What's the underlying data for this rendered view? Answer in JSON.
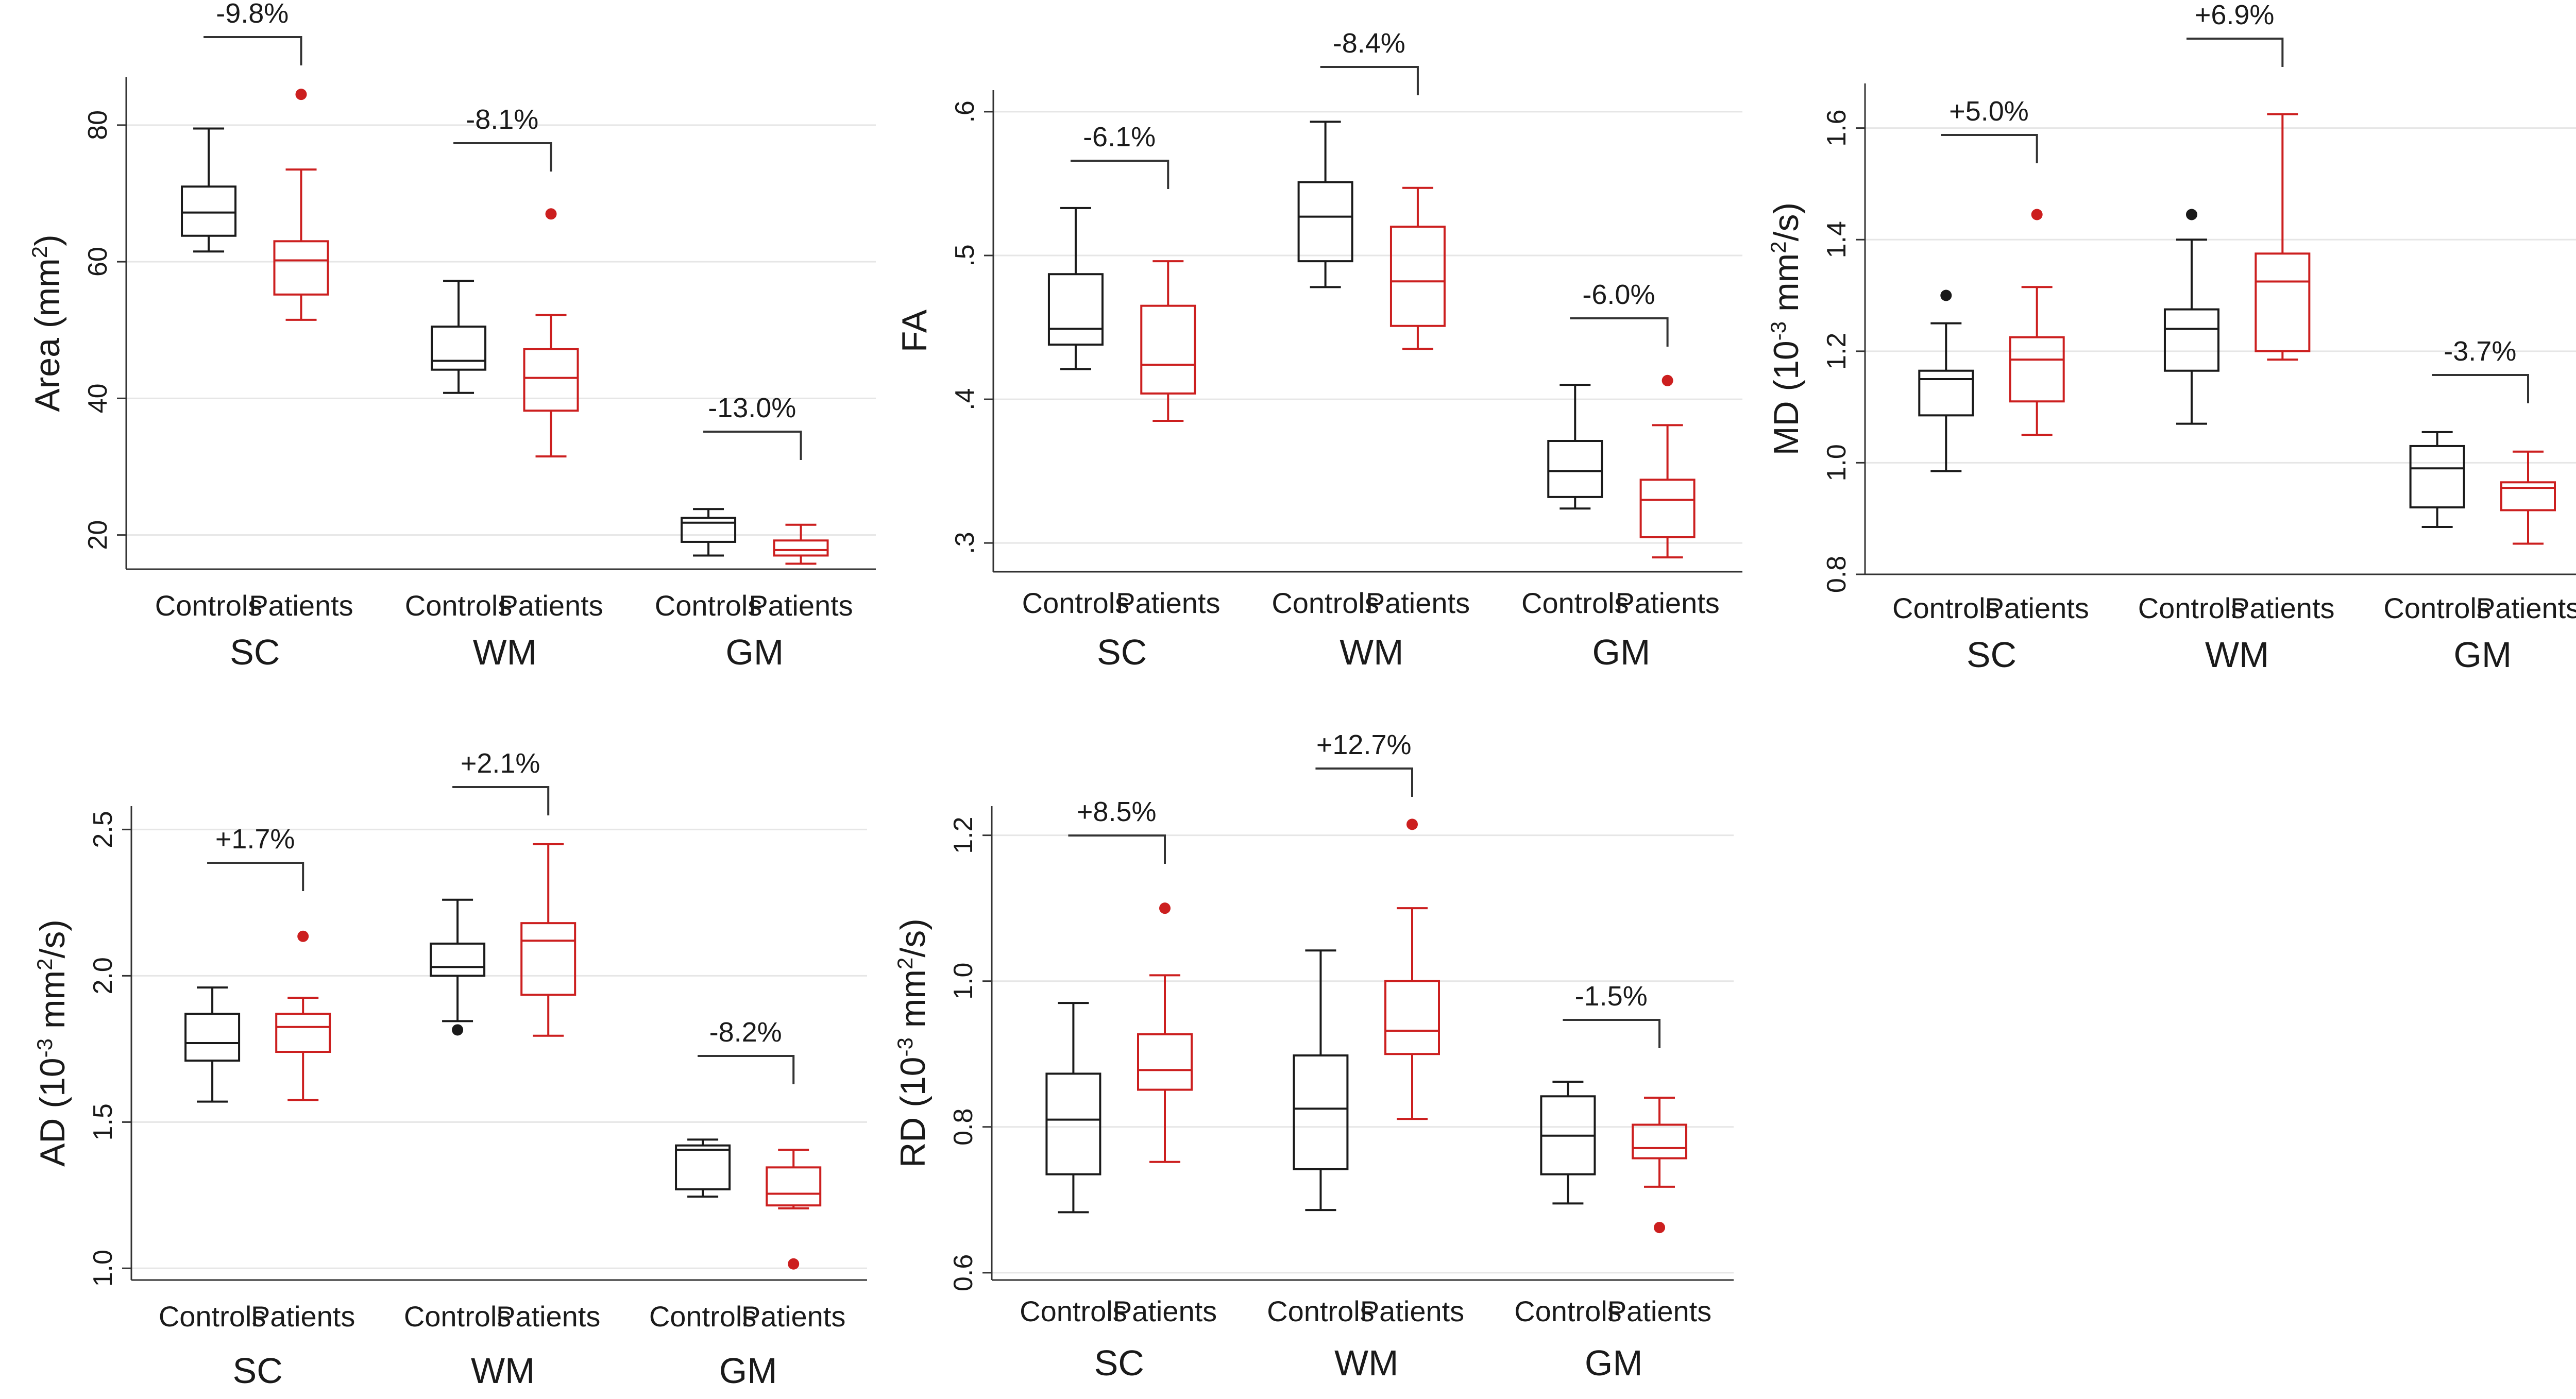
{
  "colors": {
    "controls": "#1a1a1a",
    "patients": "#cc1f1f",
    "grid": "#e6e6e6",
    "axis": "#333333"
  },
  "chart_data": [
    {
      "type": "box",
      "ylabel": "Area (mm²)",
      "ylabel_html": [
        "Area (mm",
        "2",
        ")"
      ],
      "ylim": [
        15,
        87
      ],
      "yticks": [
        20,
        40,
        60,
        80
      ],
      "ytick_labels": [
        "20",
        "40",
        "60",
        "80"
      ],
      "groups": [
        "Controls",
        "Patients"
      ],
      "sections": [
        {
          "name": "SC",
          "annotation": "-9.8%",
          "boxes": [
            {
              "group": "Controls",
              "whisker_low": 61.5,
              "q1": 63.8,
              "median": 67.2,
              "q3": 71,
              "whisker_high": 79.5,
              "outliers": []
            },
            {
              "group": "Patients",
              "whisker_low": 51.5,
              "q1": 55.2,
              "median": 60.2,
              "q3": 63,
              "whisker_high": 73.5,
              "outliers": [
                84.5
              ]
            }
          ]
        },
        {
          "name": "WM",
          "annotation": "-8.1%",
          "boxes": [
            {
              "group": "Controls",
              "whisker_low": 40.8,
              "q1": 44.2,
              "median": 45.5,
              "q3": 50.5,
              "whisker_high": 57.2,
              "outliers": []
            },
            {
              "group": "Patients",
              "whisker_low": 31.5,
              "q1": 38.2,
              "median": 43,
              "q3": 47.2,
              "whisker_high": 52.2,
              "outliers": [
                67
              ]
            }
          ]
        },
        {
          "name": "GM",
          "annotation": "-13.0%",
          "boxes": [
            {
              "group": "Controls",
              "whisker_low": 17,
              "q1": 19,
              "median": 21.8,
              "q3": 22.5,
              "whisker_high": 23.8,
              "outliers": []
            },
            {
              "group": "Patients",
              "whisker_low": 15.8,
              "q1": 17,
              "median": 17.8,
              "q3": 19.2,
              "whisker_high": 21.5,
              "outliers": []
            }
          ]
        }
      ]
    },
    {
      "type": "box",
      "ylabel": "FA",
      "ylabel_html": [
        "FA"
      ],
      "ylim": [
        0.28,
        0.615
      ],
      "yticks": [
        0.3,
        0.4,
        0.5,
        0.6
      ],
      "ytick_labels": [
        ".3",
        ".4",
        ".5",
        ".6"
      ],
      "groups": [
        "Controls",
        "Patients"
      ],
      "sections": [
        {
          "name": "SC",
          "annotation": "-6.1%",
          "boxes": [
            {
              "group": "Controls",
              "whisker_low": 0.421,
              "q1": 0.438,
              "median": 0.449,
              "q3": 0.487,
              "whisker_high": 0.533,
              "outliers": []
            },
            {
              "group": "Patients",
              "whisker_low": 0.385,
              "q1": 0.404,
              "median": 0.424,
              "q3": 0.465,
              "whisker_high": 0.496,
              "outliers": []
            }
          ]
        },
        {
          "name": "WM",
          "annotation": "-8.4%",
          "boxes": [
            {
              "group": "Controls",
              "whisker_low": 0.478,
              "q1": 0.496,
              "median": 0.527,
              "q3": 0.551,
              "whisker_high": 0.593,
              "outliers": []
            },
            {
              "group": "Patients",
              "whisker_low": 0.435,
              "q1": 0.451,
              "median": 0.482,
              "q3": 0.52,
              "whisker_high": 0.547,
              "outliers": []
            }
          ]
        },
        {
          "name": "GM",
          "annotation": "-6.0%",
          "boxes": [
            {
              "group": "Controls",
              "whisker_low": 0.324,
              "q1": 0.332,
              "median": 0.35,
              "q3": 0.371,
              "whisker_high": 0.41,
              "outliers": []
            },
            {
              "group": "Patients",
              "whisker_low": 0.29,
              "q1": 0.304,
              "median": 0.33,
              "q3": 0.344,
              "whisker_high": 0.382,
              "outliers": [
                0.413
              ]
            }
          ]
        }
      ]
    },
    {
      "type": "box",
      "ylabel": "MD (10⁻³ mm²/s)",
      "ylabel_html": [
        "MD (10",
        "-3",
        " mm",
        "2",
        "/s)"
      ],
      "ylim": [
        0.8,
        1.68
      ],
      "yticks": [
        0.8,
        1.0,
        1.2,
        1.4,
        1.6
      ],
      "ytick_labels": [
        "0.8",
        "1.0",
        "1.2",
        "1.4",
        "1.6"
      ],
      "groups": [
        "Controls",
        "Patients"
      ],
      "sections": [
        {
          "name": "SC",
          "annotation": "+5.0%",
          "boxes": [
            {
              "group": "Controls",
              "whisker_low": 0.985,
              "q1": 1.085,
              "median": 1.15,
              "q3": 1.165,
              "whisker_high": 1.25,
              "outliers": [
                1.3
              ]
            },
            {
              "group": "Patients",
              "whisker_low": 1.05,
              "q1": 1.11,
              "median": 1.185,
              "q3": 1.225,
              "whisker_high": 1.315,
              "outliers": [
                1.445
              ]
            }
          ]
        },
        {
          "name": "WM",
          "annotation": "+6.9%",
          "boxes": [
            {
              "group": "Controls",
              "whisker_low": 1.07,
              "q1": 1.165,
              "median": 1.24,
              "q3": 1.275,
              "whisker_high": 1.4,
              "outliers": [
                1.445
              ]
            },
            {
              "group": "Patients",
              "whisker_low": 1.185,
              "q1": 1.2,
              "median": 1.325,
              "q3": 1.375,
              "whisker_high": 1.625,
              "outliers": []
            }
          ]
        },
        {
          "name": "GM",
          "annotation": "-3.7%",
          "boxes": [
            {
              "group": "Controls",
              "whisker_low": 0.885,
              "q1": 0.92,
              "median": 0.99,
              "q3": 1.03,
              "whisker_high": 1.055,
              "outliers": []
            },
            {
              "group": "Patients",
              "whisker_low": 0.855,
              "q1": 0.915,
              "median": 0.955,
              "q3": 0.965,
              "whisker_high": 1.02,
              "outliers": []
            }
          ]
        }
      ]
    },
    {
      "type": "box",
      "ylabel": "AD (10⁻³ mm²/s)",
      "ylabel_html": [
        "AD (10",
        "-3",
        " mm",
        "2",
        "/s)"
      ],
      "ylim": [
        0.96,
        2.58
      ],
      "yticks": [
        1.0,
        1.5,
        2.0,
        2.5
      ],
      "ytick_labels": [
        "1.0",
        "1.5",
        "2.0",
        "2.5"
      ],
      "groups": [
        "Controls",
        "Patients"
      ],
      "sections": [
        {
          "name": "SC",
          "annotation": "+1.7%",
          "boxes": [
            {
              "group": "Controls",
              "whisker_low": 1.57,
              "q1": 1.71,
              "median": 1.77,
              "q3": 1.87,
              "whisker_high": 1.96,
              "outliers": []
            },
            {
              "group": "Patients",
              "whisker_low": 1.575,
              "q1": 1.74,
              "median": 1.825,
              "q3": 1.87,
              "whisker_high": 1.925,
              "outliers": [
                2.135
              ]
            }
          ]
        },
        {
          "name": "WM",
          "annotation": "+2.1%",
          "boxes": [
            {
              "group": "Controls",
              "whisker_low": 1.845,
              "q1": 2.0,
              "median": 2.03,
              "q3": 2.11,
              "whisker_high": 2.26,
              "outliers": [
                1.815
              ]
            },
            {
              "group": "Patients",
              "whisker_low": 1.795,
              "q1": 1.935,
              "median": 2.12,
              "q3": 2.18,
              "whisker_high": 2.45,
              "outliers": []
            }
          ]
        },
        {
          "name": "GM",
          "annotation": "-8.2%",
          "boxes": [
            {
              "group": "Controls",
              "whisker_low": 1.245,
              "q1": 1.27,
              "median": 1.405,
              "q3": 1.42,
              "whisker_high": 1.44,
              "outliers": []
            },
            {
              "group": "Patients",
              "whisker_low": 1.205,
              "q1": 1.215,
              "median": 1.255,
              "q3": 1.345,
              "whisker_high": 1.405,
              "outliers": [
                1.015
              ]
            }
          ]
        }
      ]
    },
    {
      "type": "box",
      "ylabel": "RD (10⁻³ mm²/s)",
      "ylabel_html": [
        "RD (10",
        "-3",
        " mm",
        "2",
        "/s)"
      ],
      "ylim": [
        0.59,
        1.24
      ],
      "yticks": [
        0.6,
        0.8,
        1.0,
        1.2
      ],
      "ytick_labels": [
        "0.6",
        "0.8",
        "1.0",
        "1.2"
      ],
      "groups": [
        "Controls",
        "Patients"
      ],
      "sections": [
        {
          "name": "SC",
          "annotation": "+8.5%",
          "boxes": [
            {
              "group": "Controls",
              "whisker_low": 0.683,
              "q1": 0.735,
              "median": 0.81,
              "q3": 0.873,
              "whisker_high": 0.97,
              "outliers": []
            },
            {
              "group": "Patients",
              "whisker_low": 0.752,
              "q1": 0.851,
              "median": 0.878,
              "q3": 0.927,
              "whisker_high": 1.008,
              "outliers": [
                1.1
              ]
            }
          ]
        },
        {
          "name": "WM",
          "annotation": "+12.7%",
          "boxes": [
            {
              "group": "Controls",
              "whisker_low": 0.686,
              "q1": 0.742,
              "median": 0.825,
              "q3": 0.898,
              "whisker_high": 1.042,
              "outliers": []
            },
            {
              "group": "Patients",
              "whisker_low": 0.811,
              "q1": 0.9,
              "median": 0.932,
              "q3": 1.0,
              "whisker_high": 1.1,
              "outliers": [
                1.215
              ]
            }
          ]
        },
        {
          "name": "GM",
          "annotation": "-1.5%",
          "boxes": [
            {
              "group": "Controls",
              "whisker_low": 0.695,
              "q1": 0.735,
              "median": 0.788,
              "q3": 0.842,
              "whisker_high": 0.862,
              "outliers": []
            },
            {
              "group": "Patients",
              "whisker_low": 0.718,
              "q1": 0.757,
              "median": 0.771,
              "q3": 0.803,
              "whisker_high": 0.84,
              "outliers": [
                0.662
              ]
            }
          ]
        }
      ]
    }
  ]
}
